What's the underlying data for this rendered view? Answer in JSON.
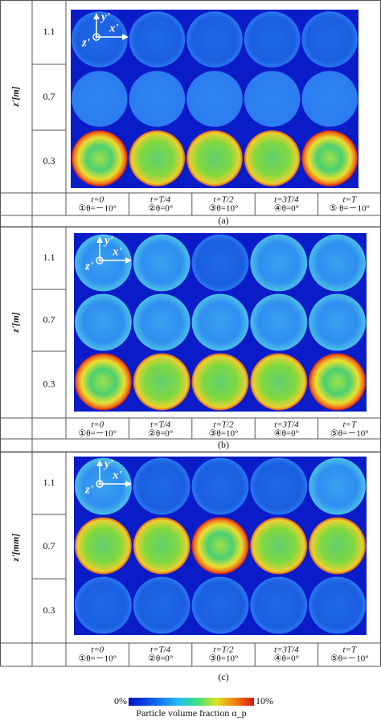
{
  "panels": [
    {
      "z_label": "z'[m]",
      "row_labels": [
        "1.1",
        "0.7",
        "0.3"
      ],
      "axis_labels": {
        "y": "y'",
        "x": "x'",
        "z": "z'"
      },
      "columns": [
        {
          "time": "t=0",
          "angle": "①θ=－10°"
        },
        {
          "time": "t=T/4",
          "angle": "②θ=0°"
        },
        {
          "time": "t=T/2",
          "angle": "③θ=10°"
        },
        {
          "time": "t=3T/4",
          "angle": "④θ=0°"
        },
        {
          "time": "t=T",
          "angle": "⑤   θ=－10°"
        }
      ],
      "caption": "(a)"
    },
    {
      "z_label": "z'[m]",
      "row_labels": [
        "1.1",
        "0.7",
        "0.3"
      ],
      "axis_labels": {
        "y": "y'",
        "x": "x'",
        "z": "z'"
      },
      "columns": [
        {
          "time": "t=0",
          "angle": "①θ=－10°"
        },
        {
          "time": "t=T/4",
          "angle": "②θ=0°"
        },
        {
          "time": "t=T/2",
          "angle": "③θ=10°"
        },
        {
          "time": "t=3T/4",
          "angle": "④θ=0°"
        },
        {
          "time": "t=T",
          "angle": "⑤θ=－10°"
        }
      ],
      "caption": "(b)"
    },
    {
      "z_label": "z'[mm]",
      "row_labels": [
        "1.1",
        "0.7",
        "0.3"
      ],
      "axis_labels": {
        "y": "y'",
        "x": "x'",
        "z": "z'"
      },
      "columns": [
        {
          "time": "t=0",
          "angle": "①θ=－10°"
        },
        {
          "time": "t=T/4",
          "angle": "②θ=0°"
        },
        {
          "time": "t=T/2",
          "angle": "③θ=10°"
        },
        {
          "time": "t=3T/4",
          "angle": "④θ=0°"
        },
        {
          "time": "t=T",
          "angle": "⑤θ=－10°"
        }
      ],
      "caption": "(c)"
    }
  ],
  "colorbar": {
    "min_label": "0%",
    "max_label": "10%",
    "title": "Particle volume fraction α_p"
  }
}
